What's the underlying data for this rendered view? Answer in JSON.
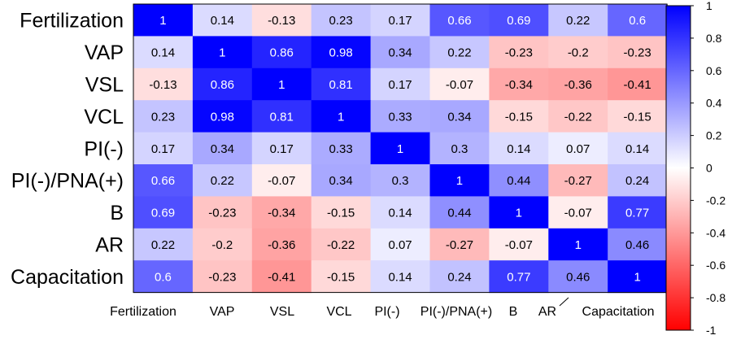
{
  "chart_data": {
    "type": "heatmap",
    "title": "",
    "row_labels": [
      "Fertilization",
      "VAP",
      "VSL",
      "VCL",
      "PI(-)",
      "PI(-)/PNA(+)",
      "B",
      "AR",
      "Capacitation"
    ],
    "col_labels": [
      "Fertilization",
      "VAP",
      "VSL",
      "VCL",
      "PI(-)",
      "PI(-)/PNA(+)",
      "B",
      "AR",
      "Capacitation"
    ],
    "values": [
      [
        1,
        0.14,
        -0.13,
        0.23,
        0.17,
        0.66,
        0.69,
        0.22,
        0.6
      ],
      [
        0.14,
        1,
        0.86,
        0.98,
        0.34,
        0.22,
        -0.23,
        -0.2,
        -0.23
      ],
      [
        -0.13,
        0.86,
        1,
        0.81,
        0.17,
        -0.07,
        -0.34,
        -0.36,
        -0.41
      ],
      [
        0.23,
        0.98,
        0.81,
        1,
        0.33,
        0.34,
        -0.15,
        -0.22,
        -0.15
      ],
      [
        0.17,
        0.34,
        0.17,
        0.33,
        1,
        0.3,
        0.14,
        0.07,
        0.14
      ],
      [
        0.66,
        0.22,
        -0.07,
        0.34,
        0.3,
        1,
        0.44,
        -0.27,
        0.24
      ],
      [
        0.69,
        -0.23,
        -0.34,
        -0.15,
        0.14,
        0.44,
        1,
        -0.07,
        0.77
      ],
      [
        0.22,
        -0.2,
        -0.36,
        -0.22,
        0.07,
        -0.27,
        -0.07,
        1,
        0.46
      ],
      [
        0.6,
        -0.23,
        -0.41,
        -0.15,
        0.14,
        0.24,
        0.77,
        0.46,
        1
      ]
    ],
    "value_range": [
      -1,
      1
    ],
    "colorbar": {
      "ticks": [
        1,
        0.8,
        0.6,
        0.4,
        0.2,
        0,
        -0.2,
        -0.4,
        -0.6,
        -0.8,
        -1
      ],
      "tick_labels": [
        "1",
        "0.8",
        "0.6",
        "0.4",
        "0.2",
        "0",
        "-0.2",
        "-0.4",
        "-0.6",
        "-0.8",
        "-1"
      ],
      "colors": {
        "high": "#0000ff",
        "mid": "#ffffff",
        "low": "#ff0000"
      }
    },
    "legend_position": "right"
  }
}
